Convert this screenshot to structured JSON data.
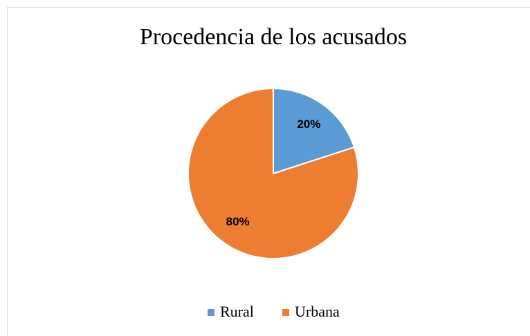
{
  "chart_data": {
    "type": "pie",
    "title": "Procedencia de los acusados",
    "categories": [
      "Rural",
      "Urbana"
    ],
    "values": [
      20,
      80
    ],
    "value_labels": [
      "20%",
      "80%"
    ],
    "colors": [
      "#5b9bd5",
      "#ed7d31"
    ],
    "legend": "bottom"
  }
}
